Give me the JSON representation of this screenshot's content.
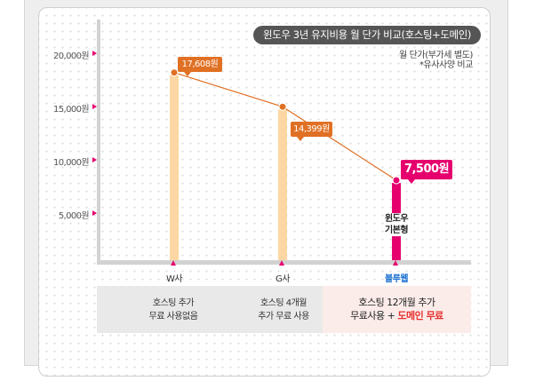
{
  "chart_data": {
    "type": "bar",
    "title": "윈도우 3년 유지비용 월 단가 비교(호스팅+도메인)",
    "note_lines": [
      "월 단가(부가세 별도)",
      "*유사사양 비교"
    ],
    "categories": [
      "W사",
      "G사",
      "블루웹"
    ],
    "values": [
      17608,
      14399,
      7500
    ],
    "value_labels": [
      "17,608원",
      "14,399원",
      "7,500원"
    ],
    "ylim": [
      0,
      22000
    ],
    "yticks": [
      {
        "value": 5000,
        "label": "5,000원"
      },
      {
        "value": 10000,
        "label": "10,000원"
      },
      {
        "value": 15000,
        "label": "15,000원"
      },
      {
        "value": 20000,
        "label": "20,000원"
      }
    ],
    "bar_inner_text": [
      "윈도우",
      "기본형"
    ],
    "grid": false,
    "colors": {
      "bar": "#fdd7a3",
      "highlight_bar": "#e5006e",
      "line": "#e07023",
      "marker": "#e07023",
      "highlight_marker": "#e5006e",
      "axis": "#d2d2d2",
      "tick_arrow": "#e5006e"
    }
  },
  "footer": {
    "cells": [
      {
        "line1": "호스팅 추가",
        "line2": "무료 사용없음"
      },
      {
        "line1": "호스팅 4개월",
        "line2": "추가 무료 사용"
      },
      {
        "line1": "호스팅 12개월 추가",
        "line2_a": "무료사용 + ",
        "line2_b": "도메인 무료"
      }
    ]
  }
}
